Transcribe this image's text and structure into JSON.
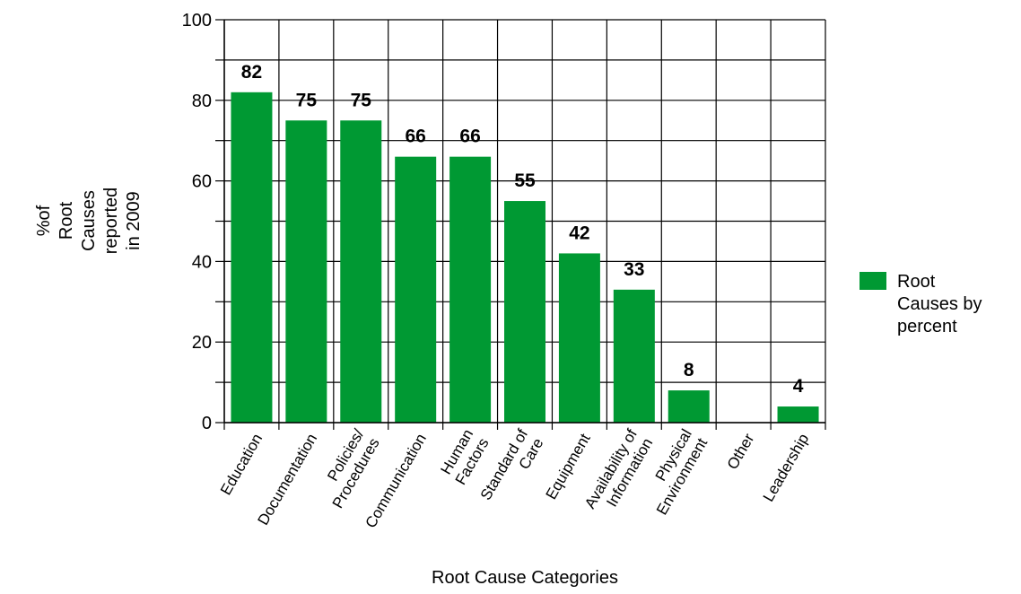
{
  "chart_data": {
    "type": "bar",
    "title": "",
    "xlabel": "Root Cause Categories",
    "ylabel_lines": [
      "%of",
      "Root",
      "Causes",
      "reported",
      "in 2009"
    ],
    "categories": [
      [
        "Education"
      ],
      [
        "Documentation"
      ],
      [
        "Policies/",
        "Procedures"
      ],
      [
        "Communication"
      ],
      [
        "Human",
        "Factors"
      ],
      [
        "Standard of",
        "Care"
      ],
      [
        "Equipment"
      ],
      [
        "Availability of",
        "Information"
      ],
      [
        "Physical",
        "Environment"
      ],
      [
        "Other"
      ],
      [
        "Leadership"
      ]
    ],
    "series": [
      {
        "name": "Root Causes by percent",
        "name_lines": [
          "Root",
          "Causes by",
          "percent"
        ],
        "color": "#009933",
        "values": [
          82,
          75,
          75,
          66,
          66,
          55,
          42,
          33,
          8,
          0,
          4
        ],
        "data_labels": [
          "82",
          "75",
          "75",
          "66",
          "66",
          "55",
          "42",
          "33",
          "8",
          "",
          "4"
        ]
      }
    ],
    "ylim": [
      0,
      100
    ],
    "yticks": [
      0,
      20,
      40,
      60,
      80,
      100
    ],
    "grid": true,
    "legend_position": "right"
  }
}
